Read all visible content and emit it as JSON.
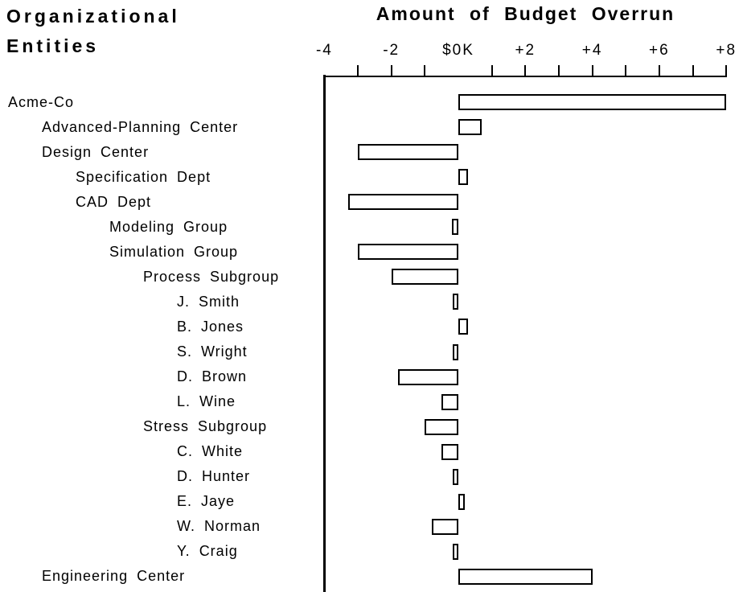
{
  "page": {
    "background_color": "#ffffff",
    "foreground_color": "#000000"
  },
  "left_header": {
    "line1": "Organizational",
    "line2": "Entities"
  },
  "chart_title": "Amount of Budget Overrun",
  "axis": {
    "tick_labels": [
      {
        "label": "-4",
        "value": -4
      },
      {
        "label": "-2",
        "value": -2
      },
      {
        "label": "$0K",
        "value": 0
      },
      {
        "label": "+2",
        "value": 2
      },
      {
        "label": "+4",
        "value": 4
      },
      {
        "label": "+6",
        "value": 6
      },
      {
        "label": "+8",
        "value": 8
      }
    ],
    "ticks": [
      -3,
      -2,
      -1,
      1,
      2,
      3,
      4,
      5,
      6,
      7,
      8
    ],
    "min": -4,
    "max": 8
  },
  "chart_data": {
    "type": "bar",
    "orientation": "horizontal",
    "title": "Amount of Budget Overrun",
    "categories_title": "Organizational Entities",
    "value_unit": "$K",
    "xlim": [
      -4,
      8
    ],
    "grid": false,
    "legend": false,
    "bar_style": {
      "fill": "#ffffff",
      "stroke": "#000000"
    },
    "rows": [
      {
        "label": "Acme-Co",
        "indent": 0,
        "value": 8.0
      },
      {
        "label": "Advanced-Planning Center",
        "indent": 1,
        "value": 0.7
      },
      {
        "label": "Design Center",
        "indent": 1,
        "value": -3.0
      },
      {
        "label": "Specification Dept",
        "indent": 2,
        "value": 0.3
      },
      {
        "label": "CAD Dept",
        "indent": 2,
        "value": -3.3
      },
      {
        "label": "Modeling Group",
        "indent": 3,
        "value": -0.2
      },
      {
        "label": "Simulation Group",
        "indent": 3,
        "value": -3.0
      },
      {
        "label": "Process Subgroup",
        "indent": 4,
        "value": -2.0
      },
      {
        "label": "J.  Smith",
        "indent": 5,
        "value": -0.1
      },
      {
        "label": "B. Jones",
        "indent": 5,
        "value": 0.3
      },
      {
        "label": "S.  Wright",
        "indent": 5,
        "value": -0.1
      },
      {
        "label": "D.  Brown",
        "indent": 5,
        "value": -1.8
      },
      {
        "label": "L. Wine",
        "indent": 5,
        "value": -0.5
      },
      {
        "label": "Stress Subgroup",
        "indent": 4,
        "value": -1.0
      },
      {
        "label": "C. White",
        "indent": 5,
        "value": -0.5
      },
      {
        "label": "D.  Hunter",
        "indent": 5,
        "value": -0.1
      },
      {
        "label": "E.  Jaye",
        "indent": 5,
        "value": 0.2
      },
      {
        "label": "W.  Norman",
        "indent": 5,
        "value": -0.8
      },
      {
        "label": "Y.  Craig",
        "indent": 5,
        "value": -0.1
      },
      {
        "label": "Engineering Center",
        "indent": 1,
        "value": 4.0
      }
    ]
  }
}
